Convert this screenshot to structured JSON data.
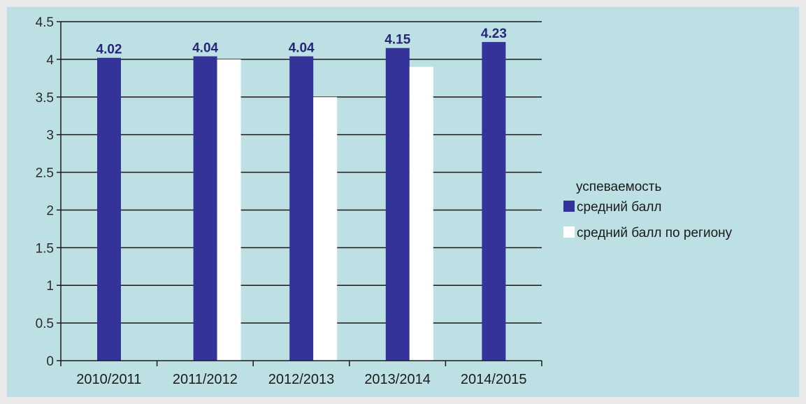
{
  "chart_data": {
    "type": "bar",
    "legend_title": "успеваемость",
    "legend_position": "right",
    "grid": true,
    "categories": [
      "2010/2011",
      "2011/2012",
      "2012/2013",
      "2013/2014",
      "2014/2015"
    ],
    "series": [
      {
        "name": "средний балл",
        "color": "#333399",
        "values": [
          4.02,
          4.04,
          4.04,
          4.15,
          4.23
        ],
        "labels": [
          "4.02",
          "4.04",
          "4.04",
          "4.15",
          "4.23"
        ]
      },
      {
        "name": "средний балл по региону",
        "color": "#ffffff",
        "values": [
          null,
          4.0,
          3.5,
          3.9,
          null
        ]
      }
    ],
    "ylim": [
      0,
      4.5
    ],
    "yticks": [
      0,
      0.5,
      1,
      1.5,
      2,
      2.5,
      3,
      3.5,
      4,
      4.5
    ],
    "ytick_labels": [
      "0",
      "0.5",
      "1",
      "1.5",
      "2",
      "2.5",
      "3",
      "3.5",
      "4",
      "4.5"
    ],
    "xlabel": "",
    "ylabel": ""
  }
}
